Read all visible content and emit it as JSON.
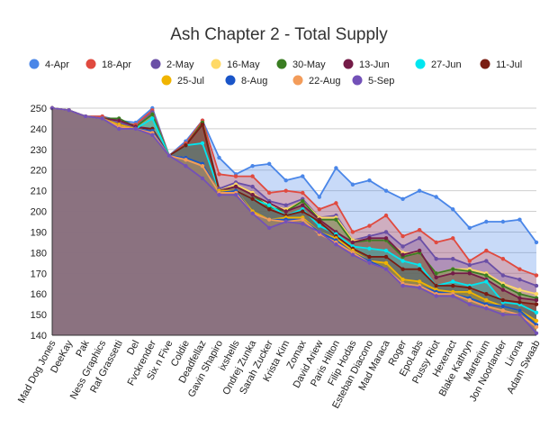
{
  "chart_data": {
    "type": "area",
    "title": "Ash Chapter 2 - Total Supply",
    "xlabel": "",
    "ylabel": "",
    "ylim": [
      140,
      250
    ],
    "yticks": [
      140,
      150,
      160,
      170,
      180,
      190,
      200,
      210,
      220,
      230,
      240,
      250
    ],
    "grid": true,
    "legend_position": "top",
    "categories": [
      "Mad Dog Jones",
      "DeeKay",
      "Pak",
      "Ness Graphics",
      "Raf Grassetti",
      "Del",
      "Fvckrender",
      "Six n Five",
      "Coldie",
      "Deadfellaz",
      "Gavin Shapiro",
      "ixshells",
      "Ondrej Zunka",
      "Sarah Zucker",
      "Krista Kim",
      "Zomax",
      "David Ariew",
      "Paris Hilton",
      "Filip Hodas",
      "Esteban Diacono",
      "Mad Maraca",
      "Roger",
      "EpoLabs",
      "Pussy Riot",
      "Hexeract",
      "Blake Kathryn",
      "Marterium",
      "Jon Noorlander",
      "Lirona",
      "Adam Swaab"
    ],
    "series": [
      {
        "name": "4-Apr",
        "color": "#4a86e8",
        "values": [
          250,
          249,
          246,
          246,
          244,
          243,
          250,
          227,
          234,
          244,
          226,
          218,
          222,
          223,
          215,
          217,
          207,
          221,
          213,
          215,
          210,
          206,
          210,
          207,
          201,
          192,
          195,
          195,
          196,
          185
        ]
      },
      {
        "name": "18-Apr",
        "color": "#e04a3f",
        "values": [
          250,
          249,
          246,
          246,
          243,
          242,
          249,
          227,
          233,
          244,
          218,
          217,
          217,
          209,
          210,
          209,
          201,
          204,
          190,
          193,
          198,
          188,
          191,
          185,
          187,
          176,
          181,
          177,
          172,
          169
        ]
      },
      {
        "name": "2-May",
        "color": "#6a4fa6",
        "values": [
          250,
          249,
          246,
          245,
          243,
          241,
          248,
          227,
          232,
          243,
          211,
          214,
          212,
          205,
          203,
          206,
          197,
          198,
          186,
          188,
          190,
          183,
          187,
          177,
          177,
          174,
          176,
          169,
          167,
          164
        ]
      },
      {
        "name": "16-May",
        "color": "#ffd966",
        "values": [
          250,
          249,
          246,
          245,
          244,
          241,
          247,
          227,
          232,
          243,
          210,
          213,
          209,
          203,
          201,
          205,
          197,
          197,
          186,
          186,
          186,
          180,
          180,
          170,
          172,
          172,
          170,
          165,
          162,
          160
        ]
      },
      {
        "name": "30-May",
        "color": "#3a7d22",
        "values": [
          250,
          249,
          246,
          245,
          245,
          241,
          247,
          227,
          232,
          243,
          210,
          212,
          208,
          202,
          200,
          205,
          196,
          196,
          185,
          186,
          186,
          178,
          180,
          170,
          172,
          171,
          169,
          164,
          160,
          158
        ]
      },
      {
        "name": "13-Jun",
        "color": "#741b47",
        "values": [
          250,
          249,
          246,
          245,
          244,
          241,
          240,
          227,
          232,
          242,
          210,
          212,
          208,
          204,
          200,
          203,
          196,
          190,
          185,
          187,
          187,
          179,
          181,
          168,
          170,
          170,
          167,
          162,
          158,
          157
        ]
      },
      {
        "name": "27-Jun",
        "color": "#00e6f0",
        "values": [
          250,
          249,
          246,
          245,
          242,
          240,
          245,
          227,
          232,
          233,
          210,
          210,
          206,
          203,
          198,
          201,
          193,
          189,
          183,
          182,
          181,
          176,
          174,
          164,
          166,
          164,
          166,
          156,
          155,
          151
        ]
      },
      {
        "name": "11-Jul",
        "color": "#7a1d13",
        "values": [
          250,
          249,
          246,
          245,
          242,
          240,
          240,
          227,
          232,
          242,
          210,
          210,
          206,
          201,
          198,
          200,
          195,
          188,
          182,
          178,
          178,
          172,
          172,
          164,
          164,
          163,
          160,
          157,
          156,
          155
        ]
      },
      {
        "name": "25-Jul",
        "color": "#f0b400",
        "values": [
          250,
          249,
          246,
          245,
          242,
          240,
          239,
          227,
          226,
          222,
          210,
          210,
          200,
          196,
          197,
          197,
          190,
          187,
          181,
          176,
          175,
          167,
          166,
          162,
          161,
          161,
          157,
          154,
          152,
          147
        ]
      },
      {
        "name": "8-Aug",
        "color": "#1a55c8",
        "values": [
          250,
          249,
          246,
          245,
          241,
          240,
          239,
          227,
          226,
          223,
          209,
          210,
          199,
          196,
          196,
          196,
          190,
          186,
          180,
          176,
          172,
          165,
          164,
          161,
          160,
          158,
          155,
          154,
          152,
          145
        ]
      },
      {
        "name": "22-Aug",
        "color": "#f39c5a",
        "values": [
          250,
          249,
          246,
          245,
          241,
          240,
          238,
          227,
          225,
          222,
          209,
          209,
          199,
          196,
          195,
          196,
          189,
          185,
          180,
          175,
          172,
          165,
          164,
          160,
          160,
          157,
          154,
          152,
          150,
          144
        ]
      },
      {
        "name": "5-Sep",
        "color": "#7351b8",
        "values": [
          250,
          249,
          246,
          245,
          240,
          240,
          237,
          227,
          222,
          216,
          208,
          208,
          199,
          192,
          195,
          194,
          190,
          184,
          179,
          175,
          172,
          164,
          163,
          159,
          159,
          155,
          153,
          150,
          150,
          141
        ]
      }
    ]
  }
}
